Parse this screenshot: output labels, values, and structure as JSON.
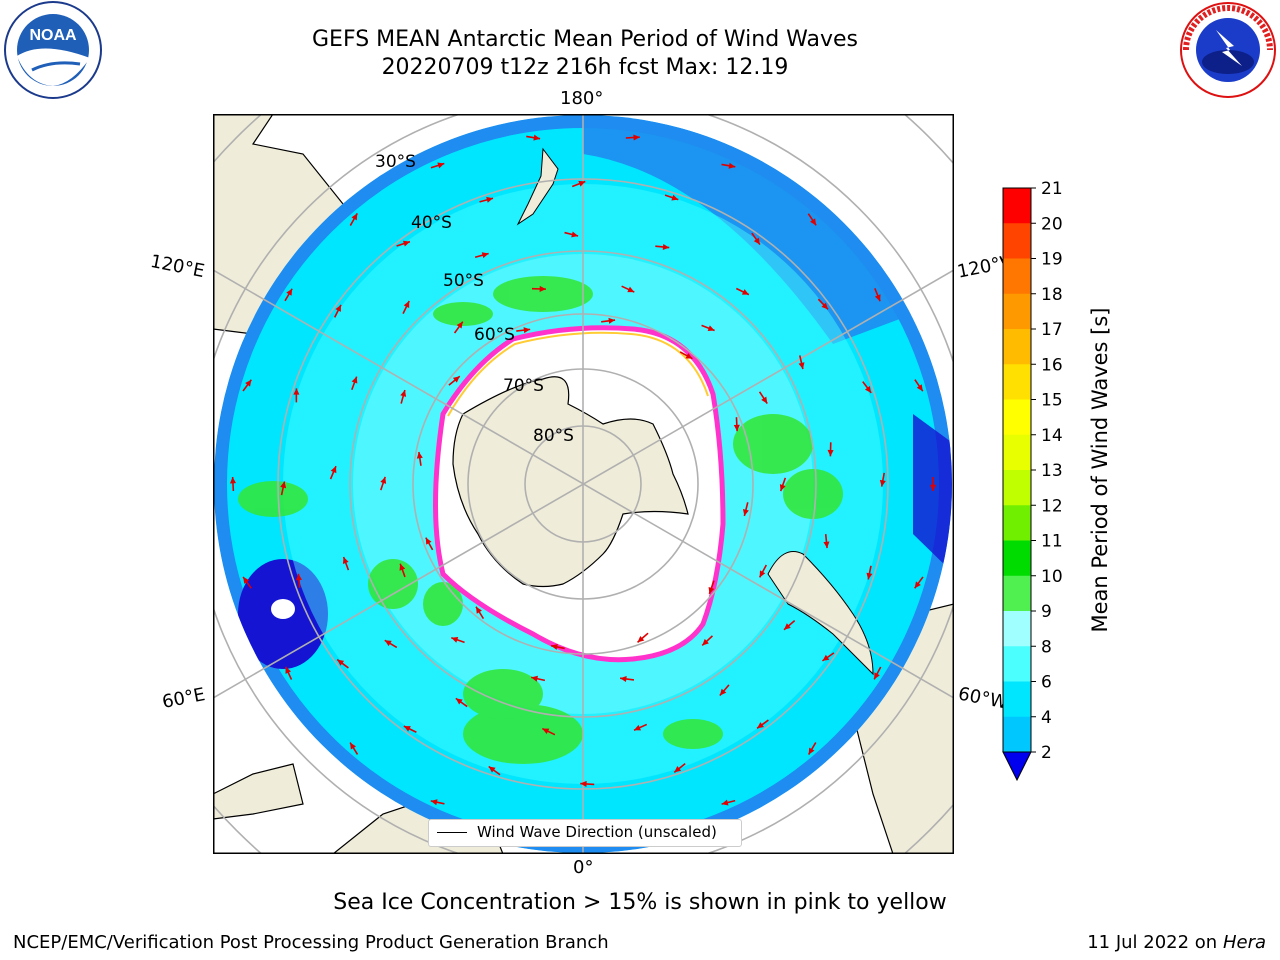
{
  "header": {
    "title_line1": "GEFS MEAN Antarctic Mean Period of Wind Waves",
    "title_line2": "20220709 t12z 216h fcst   Max: 12.19"
  },
  "logos": {
    "left": {
      "name": "noara-logo",
      "text": "NOAA",
      "ring_text": "NATIONAL OCEANIC AND ATMOSPHERIC ADMINISTRATION · U.S. DEPARTMENT OF COMMERCE"
    },
    "right": {
      "name": "nws-logo",
      "ring_text": "NATIONAL WEATHER SERVICE"
    }
  },
  "map": {
    "longitude_labels": {
      "top": "180°",
      "bottom": "0°",
      "upper_left": "120°E",
      "upper_right": "120°W",
      "lower_left": "60°E",
      "lower_right": "60°W"
    },
    "latitude_labels": [
      "30°S",
      "40°S",
      "50°S",
      "60°S",
      "70°S",
      "80°S"
    ],
    "legend": "Wind Wave Direction (unscaled)",
    "colors": {
      "land": "#efecd9",
      "ocean_low": "#1e8cf0",
      "ocean_mid": "#00e0ff",
      "ocean_light": "#a6ffff",
      "green": "#32e632",
      "dark_blue": "#1414d2",
      "arrow": "#ff0000",
      "ice_edge": "#ff33cc"
    }
  },
  "colorbar": {
    "label": "Mean Period of Wind Waves [s]",
    "ticks": [
      "2",
      "4",
      "6",
      "8",
      "9",
      "10",
      "11",
      "12",
      "13",
      "14",
      "15",
      "16",
      "17",
      "18",
      "19",
      "20",
      "21"
    ],
    "colors": [
      "#0050ff",
      "#00c8ff",
      "#00e6ff",
      "#4cffff",
      "#a0ffff",
      "#50f050",
      "#00dc00",
      "#70f000",
      "#c0ff00",
      "#e8ff00",
      "#ffff00",
      "#ffe000",
      "#ffbb00",
      "#ff9900",
      "#ff7700",
      "#ff4400",
      "#ff0000"
    ]
  },
  "footer": {
    "caption": "Sea Ice Concentration > 15% is shown in pink to yellow",
    "left": "NCEP/EMC/Verification Post Processing Product Generation Branch",
    "right_date": "11 Jul 2022 on",
    "right_host": "Hera"
  }
}
